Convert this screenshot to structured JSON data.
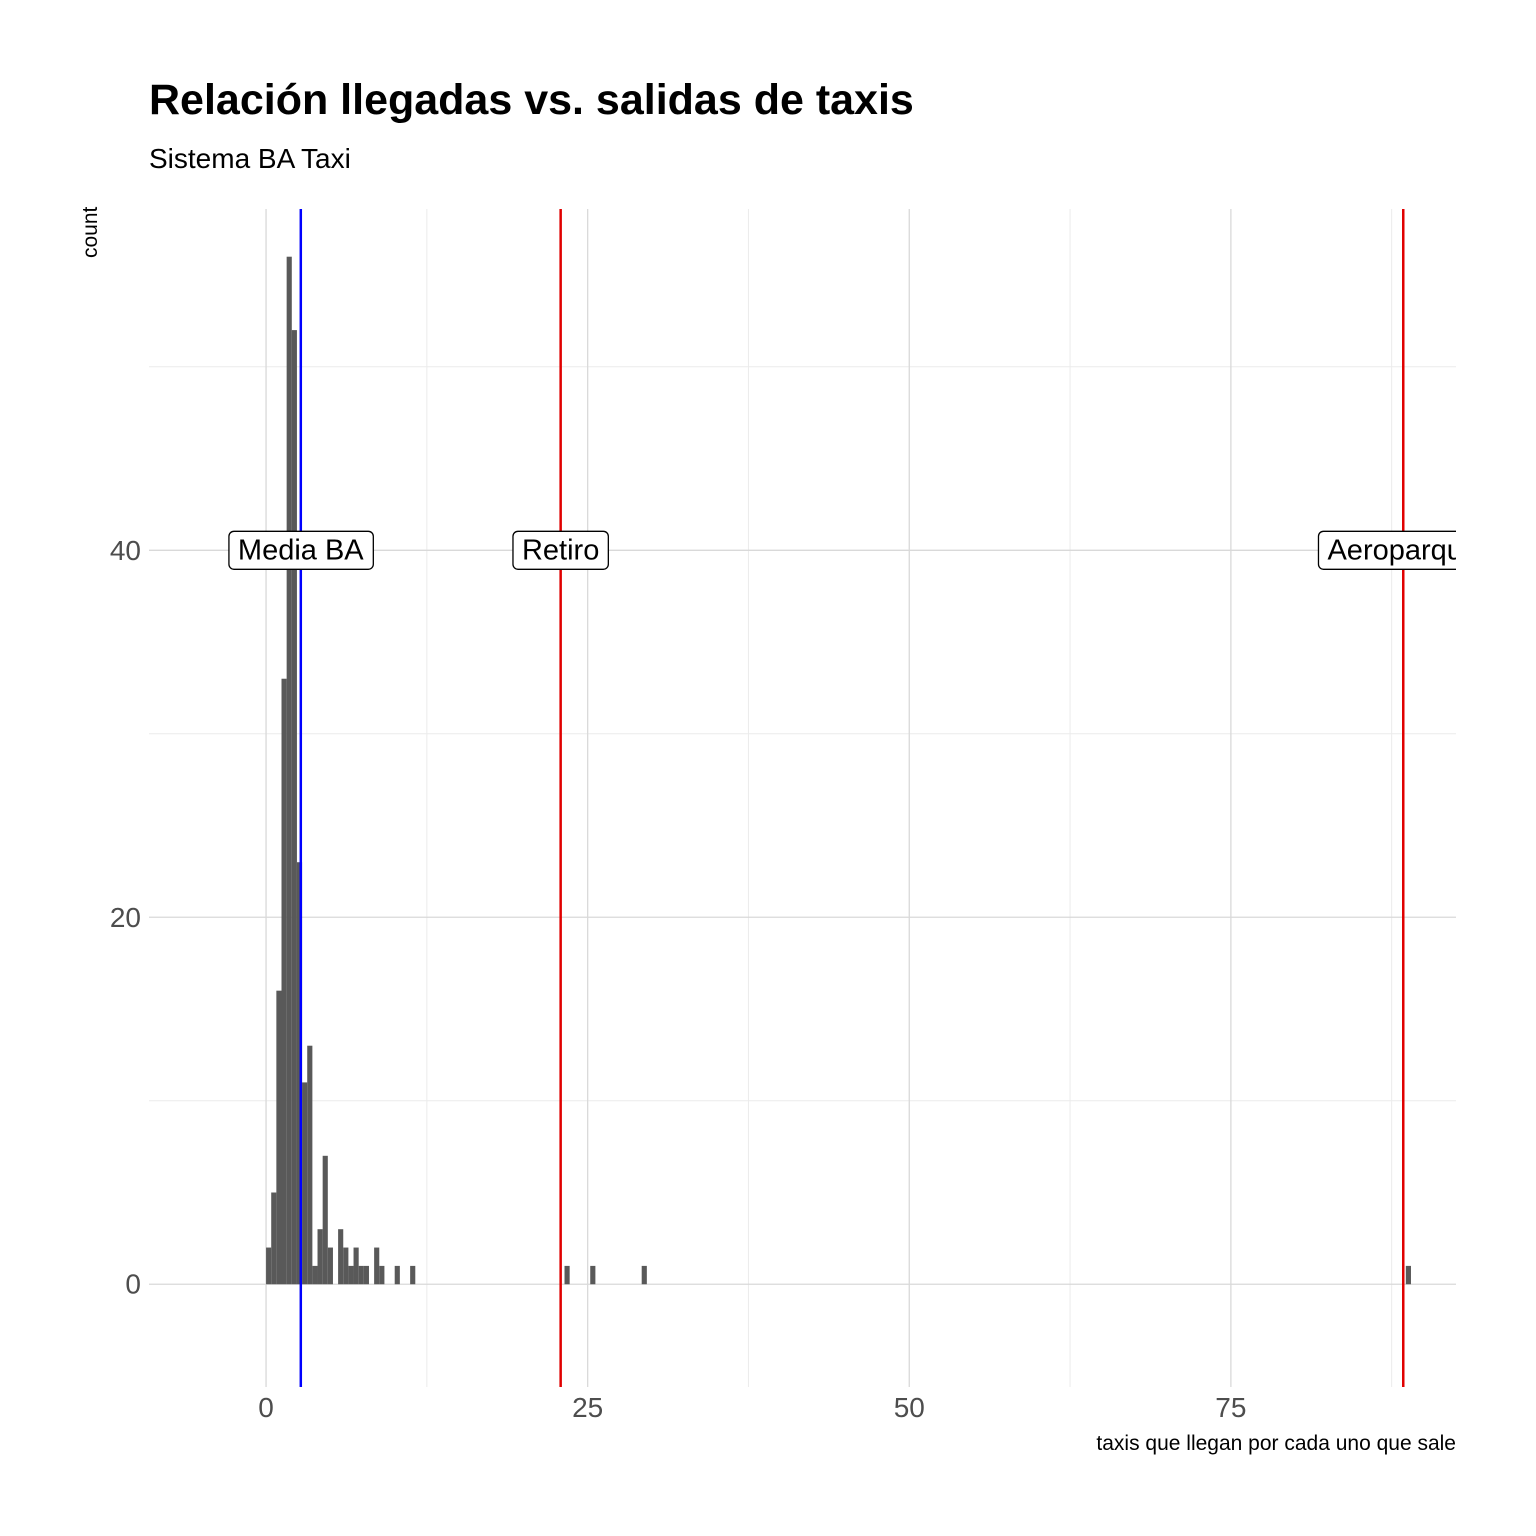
{
  "chart_data": {
    "type": "bar",
    "title": "Relación llegadas vs. salidas de taxis",
    "subtitle": "Sistema BA Taxi",
    "xlabel": "taxis que llegan por cada uno que sale",
    "ylabel": "count",
    "xlim": [
      -9.1,
      92.5
    ],
    "ylim": [
      -5.6,
      58.6
    ],
    "x_ticks": [
      0,
      25,
      50,
      75
    ],
    "x_tick_labels": [
      "0",
      "25",
      "50",
      "75"
    ],
    "y_ticks": [
      0,
      20,
      40
    ],
    "y_tick_labels": [
      "0",
      "20",
      "40"
    ],
    "grid": true,
    "bin_width": 0.4,
    "bar_color": "#595959",
    "bins": [
      {
        "x": 0.0,
        "count": 2
      },
      {
        "x": 0.4,
        "count": 5
      },
      {
        "x": 0.8,
        "count": 16
      },
      {
        "x": 1.2,
        "count": 33
      },
      {
        "x": 1.6,
        "count": 56
      },
      {
        "x": 2.0,
        "count": 52
      },
      {
        "x": 2.4,
        "count": 23
      },
      {
        "x": 2.8,
        "count": 11
      },
      {
        "x": 3.2,
        "count": 13
      },
      {
        "x": 3.6,
        "count": 1
      },
      {
        "x": 4.0,
        "count": 3
      },
      {
        "x": 4.4,
        "count": 7
      },
      {
        "x": 4.8,
        "count": 2
      },
      {
        "x": 5.2,
        "count": 0
      },
      {
        "x": 5.6,
        "count": 3
      },
      {
        "x": 6.0,
        "count": 2
      },
      {
        "x": 6.4,
        "count": 1
      },
      {
        "x": 6.8,
        "count": 2
      },
      {
        "x": 7.2,
        "count": 1
      },
      {
        "x": 7.6,
        "count": 1
      },
      {
        "x": 8.0,
        "count": 0
      },
      {
        "x": 8.4,
        "count": 2
      },
      {
        "x": 8.8,
        "count": 1
      },
      {
        "x": 10.0,
        "count": 1
      },
      {
        "x": 11.2,
        "count": 1
      },
      {
        "x": 23.2,
        "count": 1
      },
      {
        "x": 25.2,
        "count": 1
      },
      {
        "x": 29.2,
        "count": 1
      },
      {
        "x": 88.6,
        "count": 1
      }
    ],
    "reference_lines": [
      {
        "x": 2.7,
        "color": "#0000ff",
        "label": "Media BA",
        "label_y": 40
      },
      {
        "x": 22.9,
        "color": "#e00000",
        "label": "Retiro",
        "label_y": 40
      },
      {
        "x": 88.4,
        "color": "#e00000",
        "label": "Aeroparque",
        "label_y": 40
      }
    ]
  }
}
